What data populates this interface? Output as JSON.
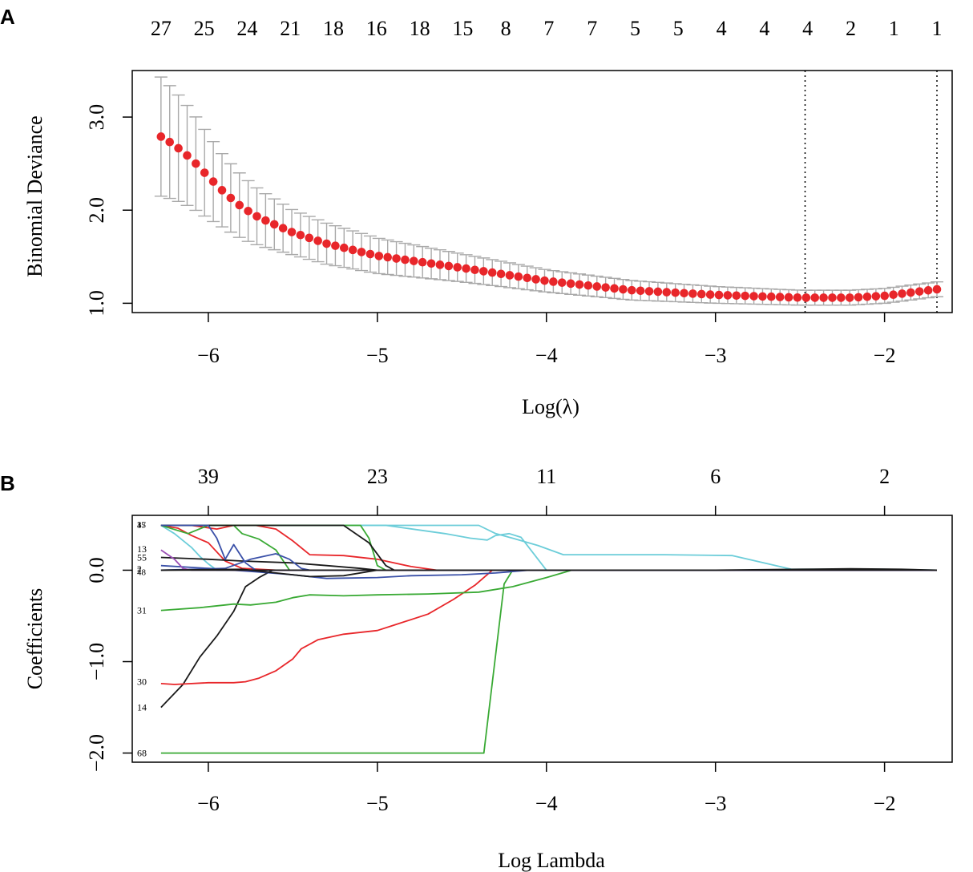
{
  "chart_data": [
    {
      "panel_label": "A",
      "type": "scatter",
      "xlabel": "Log(λ)",
      "ylabel": "Binomial Deviance",
      "xlim": [
        -6.45,
        -1.6
      ],
      "ylim": [
        0.9,
        3.5
      ],
      "x_ticks": [
        -6,
        -5,
        -4,
        -3,
        -2
      ],
      "x_tick_labels": [
        "−6",
        "−5",
        "−4",
        "−3",
        "−2"
      ],
      "y_ticks": [
        1.0,
        2.0,
        3.0
      ],
      "y_tick_labels": [
        "1.0",
        "2.0",
        "3.0"
      ],
      "top_axis_labels": [
        "27",
        "25",
        "24",
        "21",
        "18",
        "16",
        "18",
        "15",
        "8",
        "7",
        "7",
        "5",
        "5",
        "4",
        "4",
        "4",
        "2",
        "1",
        "1"
      ],
      "x_start": -6.28,
      "x_end": -1.69,
      "n_points": 90,
      "mean_anchors": [
        [
          -6.28,
          2.79
        ],
        [
          -6.2,
          2.7
        ],
        [
          -6.1,
          2.55
        ],
        [
          -6.0,
          2.36
        ],
        [
          -5.9,
          2.18
        ],
        [
          -5.8,
          2.03
        ],
        [
          -5.7,
          1.92
        ],
        [
          -5.5,
          1.76
        ],
        [
          -5.3,
          1.64
        ],
        [
          -5.0,
          1.51
        ],
        [
          -4.5,
          1.38
        ],
        [
          -4.0,
          1.24
        ],
        [
          -3.5,
          1.14
        ],
        [
          -3.0,
          1.09
        ],
        [
          -2.5,
          1.06
        ],
        [
          -2.2,
          1.06
        ],
        [
          -2.0,
          1.08
        ],
        [
          -1.69,
          1.15
        ]
      ],
      "se_anchors": [
        [
          -6.28,
          0.64
        ],
        [
          -6.1,
          0.52
        ],
        [
          -5.9,
          0.38
        ],
        [
          -5.7,
          0.3
        ],
        [
          -5.5,
          0.24
        ],
        [
          -5.0,
          0.19
        ],
        [
          -4.5,
          0.15
        ],
        [
          -4.0,
          0.12
        ],
        [
          -3.0,
          0.09
        ],
        [
          -2.5,
          0.08
        ],
        [
          -2.0,
          0.08
        ],
        [
          -1.69,
          0.08
        ]
      ],
      "vlines": [
        -2.47,
        -1.69
      ],
      "point_color": "#e8262a",
      "errorbar_color": "#a9a9a9"
    },
    {
      "panel_label": "B",
      "type": "line",
      "xlabel": "Log Lambda",
      "ylabel": "Coefficients",
      "xlim": [
        -6.45,
        -1.6
      ],
      "ylim": [
        -2.1,
        0.6
      ],
      "x_ticks": [
        -6,
        -5,
        -4,
        -3,
        -2
      ],
      "x_tick_labels": [
        "−6",
        "−5",
        "−4",
        "−3",
        "−2"
      ],
      "y_ticks": [
        -2.0,
        -1.0,
        0.0
      ],
      "y_tick_labels": [
        "−2.0",
        "−1.0",
        "0.0"
      ],
      "top_ticks": [
        -6,
        -5,
        -4,
        -3,
        -2
      ],
      "top_axis_labels": [
        "39",
        "23",
        "11",
        "6",
        "2"
      ],
      "curve_labels": [
        {
          "text": "13",
          "y": 0.23
        },
        {
          "text": "55",
          "y": 0.14
        },
        {
          "text": "31",
          "y": -0.44
        },
        {
          "text": "30",
          "y": -1.22
        },
        {
          "text": "14",
          "y": -1.5
        },
        {
          "text": "68",
          "y": -2.0
        }
      ],
      "clutter_labels": [
        {
          "text": "35",
          "y": 0.5
        },
        {
          "text": "4",
          "y": 0.5
        },
        {
          "text": "17",
          "y": 0.5
        },
        {
          "text": "2",
          "y": 0.02
        },
        {
          "text": "7",
          "y": 0.0
        },
        {
          "text": "48",
          "y": -0.02
        }
      ],
      "series": [
        {
          "color": "#1a1a1a",
          "points": [
            [
              -6.28,
              -1.5
            ],
            [
              -6.15,
              -1.25
            ],
            [
              -6.05,
              -0.95
            ],
            [
              -5.95,
              -0.72
            ],
            [
              -5.85,
              -0.45
            ],
            [
              -5.78,
              -0.18
            ],
            [
              -5.7,
              -0.08
            ],
            [
              -5.62,
              0.0
            ],
            [
              -4.6,
              0.0
            ],
            [
              -1.69,
              0.0
            ]
          ]
        },
        {
          "color": "#e8262a",
          "points": [
            [
              -6.28,
              -1.24
            ],
            [
              -6.2,
              -1.25
            ],
            [
              -6.0,
              -1.23
            ],
            [
              -5.85,
              -1.23
            ],
            [
              -5.78,
              -1.22
            ],
            [
              -5.7,
              -1.18
            ],
            [
              -5.6,
              -1.1
            ],
            [
              -5.5,
              -0.97
            ],
            [
              -5.45,
              -0.86
            ],
            [
              -5.35,
              -0.76
            ],
            [
              -5.2,
              -0.7
            ],
            [
              -5.0,
              -0.66
            ],
            [
              -4.9,
              -0.6
            ],
            [
              -4.7,
              -0.48
            ],
            [
              -4.55,
              -0.32
            ],
            [
              -4.42,
              -0.16
            ],
            [
              -4.32,
              0.0
            ],
            [
              -1.69,
              0.0
            ]
          ]
        },
        {
          "color": "#3aaa35",
          "points": [
            [
              -6.28,
              -2.0
            ],
            [
              -4.37,
              -2.0
            ],
            [
              -4.25,
              -0.15
            ],
            [
              -4.2,
              0.0
            ],
            [
              -1.69,
              0.0
            ]
          ]
        },
        {
          "color": "#3aaa35",
          "points": [
            [
              -6.28,
              -0.44
            ],
            [
              -6.05,
              -0.41
            ],
            [
              -5.85,
              -0.37
            ],
            [
              -5.75,
              -0.38
            ],
            [
              -5.6,
              -0.35
            ],
            [
              -5.5,
              -0.3
            ],
            [
              -5.4,
              -0.27
            ],
            [
              -5.2,
              -0.28
            ],
            [
              -5.0,
              -0.27
            ],
            [
              -4.7,
              -0.26
            ],
            [
              -4.4,
              -0.24
            ],
            [
              -4.2,
              -0.18
            ],
            [
              -4.0,
              -0.08
            ],
            [
              -3.85,
              0.0
            ],
            [
              -1.69,
              0.0
            ]
          ]
        },
        {
          "color": "#6ccdd9",
          "points": [
            [
              -6.28,
              0.49
            ],
            [
              -4.55,
              0.49
            ],
            [
              -4.4,
              0.49
            ],
            [
              -4.3,
              0.4
            ],
            [
              -4.2,
              0.35
            ],
            [
              -4.05,
              0.27
            ],
            [
              -3.9,
              0.17
            ],
            [
              -3.3,
              0.17
            ],
            [
              -2.9,
              0.16
            ],
            [
              -2.55,
              0.01
            ],
            [
              -2.0,
              0.01
            ],
            [
              -1.69,
              0.0
            ]
          ]
        },
        {
          "color": "#6ccdd9",
          "points": [
            [
              -6.28,
              0.49
            ],
            [
              -4.95,
              0.49
            ],
            [
              -4.6,
              0.4
            ],
            [
              -4.45,
              0.35
            ],
            [
              -4.35,
              0.33
            ],
            [
              -4.3,
              0.38
            ],
            [
              -4.22,
              0.4
            ],
            [
              -4.15,
              0.36
            ],
            [
              -4.0,
              0.0
            ],
            [
              -1.69,
              0.0
            ]
          ]
        },
        {
          "color": "#6ccdd9",
          "points": [
            [
              -6.28,
              0.49
            ],
            [
              -6.2,
              0.4
            ],
            [
              -6.1,
              0.25
            ],
            [
              -6.05,
              0.15
            ],
            [
              -6.0,
              0.07
            ],
            [
              -5.95,
              0.0
            ],
            [
              -1.69,
              0.0
            ]
          ]
        },
        {
          "color": "#e8262a",
          "points": [
            [
              -6.28,
              0.49
            ],
            [
              -6.1,
              0.49
            ],
            [
              -5.95,
              0.45
            ],
            [
              -5.85,
              0.49
            ],
            [
              -5.72,
              0.49
            ],
            [
              -5.6,
              0.45
            ],
            [
              -5.5,
              0.32
            ],
            [
              -5.4,
              0.17
            ],
            [
              -5.2,
              0.16
            ],
            [
              -5.0,
              0.12
            ],
            [
              -4.8,
              0.04
            ],
            [
              -4.65,
              0.0
            ],
            [
              -1.69,
              0.0
            ]
          ]
        },
        {
          "color": "#e8262a",
          "points": [
            [
              -6.28,
              0.49
            ],
            [
              -6.18,
              0.46
            ],
            [
              -6.1,
              0.38
            ],
            [
              -6.0,
              0.3
            ],
            [
              -5.9,
              0.1
            ],
            [
              -5.8,
              0.02
            ],
            [
              -5.6,
              0.0
            ],
            [
              -1.69,
              0.0
            ]
          ]
        },
        {
          "color": "#3aaa35",
          "points": [
            [
              -6.28,
              0.49
            ],
            [
              -6.12,
              0.4
            ],
            [
              -6.0,
              0.49
            ],
            [
              -5.85,
              0.49
            ],
            [
              -5.8,
              0.4
            ],
            [
              -5.7,
              0.34
            ],
            [
              -5.6,
              0.22
            ],
            [
              -5.52,
              0.0
            ],
            [
              -1.69,
              0.0
            ]
          ]
        },
        {
          "color": "#3aaa35",
          "points": [
            [
              -6.28,
              0.49
            ],
            [
              -5.1,
              0.49
            ],
            [
              -5.05,
              0.35
            ],
            [
              -5.0,
              0.05
            ],
            [
              -4.95,
              0.0
            ],
            [
              -1.69,
              0.0
            ]
          ]
        },
        {
          "color": "#1a1a1a",
          "points": [
            [
              -6.28,
              0.49
            ],
            [
              -5.2,
              0.49
            ],
            [
              -5.05,
              0.3
            ],
            [
              -4.95,
              0.05
            ],
            [
              -4.9,
              0.0
            ],
            [
              -1.69,
              0.0
            ]
          ]
        },
        {
          "color": "#1a1a1a",
          "points": [
            [
              -6.28,
              0.14
            ],
            [
              -6.0,
              0.12
            ],
            [
              -5.8,
              0.1
            ],
            [
              -5.5,
              0.08
            ],
            [
              -5.3,
              0.05
            ],
            [
              -5.1,
              0.02
            ],
            [
              -5.0,
              0.0
            ],
            [
              -1.69,
              0.0
            ]
          ]
        },
        {
          "color": "#3a50a8",
          "points": [
            [
              -6.28,
              0.05
            ],
            [
              -6.0,
              0.02
            ],
            [
              -5.7,
              -0.02
            ],
            [
              -5.5,
              -0.05
            ],
            [
              -5.3,
              -0.09
            ],
            [
              -5.0,
              -0.08
            ],
            [
              -4.8,
              -0.06
            ],
            [
              -4.5,
              -0.05
            ],
            [
              -4.3,
              -0.03
            ],
            [
              -4.1,
              0.0
            ],
            [
              -1.69,
              0.0
            ]
          ]
        },
        {
          "color": "#3a50a8",
          "points": [
            [
              -6.28,
              0.49
            ],
            [
              -6.0,
              0.49
            ],
            [
              -5.95,
              0.35
            ],
            [
              -5.9,
              0.12
            ],
            [
              -5.85,
              0.28
            ],
            [
              -5.78,
              0.08
            ],
            [
              -5.72,
              0.0
            ],
            [
              -1.69,
              0.0
            ]
          ]
        },
        {
          "color": "#3a50a8",
          "points": [
            [
              -6.28,
              0.0
            ],
            [
              -5.9,
              0.02
            ],
            [
              -5.75,
              0.12
            ],
            [
              -5.6,
              0.18
            ],
            [
              -5.52,
              0.12
            ],
            [
              -5.45,
              0.02
            ],
            [
              -5.4,
              0.0
            ],
            [
              -1.69,
              0.0
            ]
          ]
        },
        {
          "color": "#9b4fb5",
          "points": [
            [
              -6.28,
              0.22
            ],
            [
              -6.2,
              0.12
            ],
            [
              -6.15,
              0.02
            ],
            [
              -6.1,
              0.0
            ],
            [
              -1.69,
              0.0
            ]
          ]
        },
        {
          "color": "#1a1a1a",
          "points": [
            [
              -6.28,
              0.0
            ],
            [
              -5.8,
              0.01
            ],
            [
              -5.6,
              -0.03
            ],
            [
              -5.4,
              -0.07
            ],
            [
              -5.2,
              -0.06
            ],
            [
              -5.0,
              0.0
            ],
            [
              -1.69,
              0.0
            ]
          ]
        },
        {
          "color": "#1a1a1a",
          "points": [
            [
              -6.28,
              0.0
            ],
            [
              -3.0,
              0.0
            ],
            [
              -2.5,
              0.01
            ],
            [
              -2.2,
              0.015
            ],
            [
              -1.9,
              0.01
            ],
            [
              -1.69,
              0.0
            ]
          ]
        }
      ]
    }
  ]
}
